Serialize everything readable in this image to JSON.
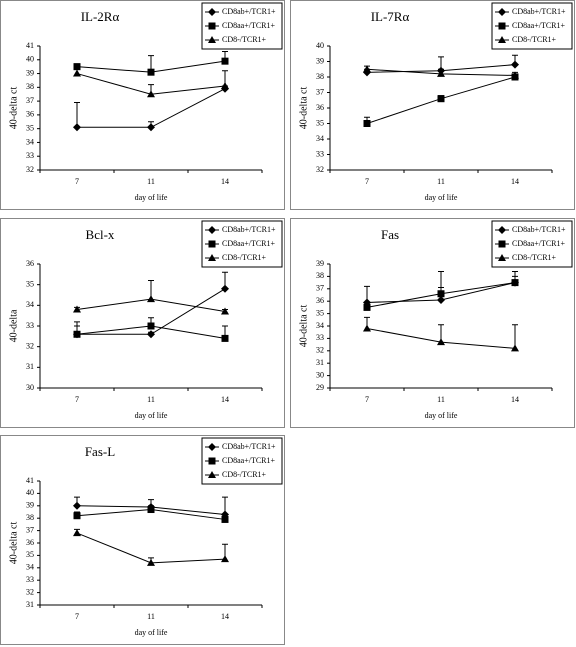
{
  "chart_data": [
    {
      "type": "line",
      "title": "IL-2Rα",
      "y_label": "40-delta ct",
      "x_label": "day of life",
      "categories": [
        "7",
        "11",
        "14"
      ],
      "ylim": [
        32,
        41
      ],
      "yticks": [
        32,
        33,
        34,
        35,
        36,
        37,
        38,
        39,
        40,
        41
      ],
      "legend": "top-right",
      "series": [
        {
          "name": "CD8ab+/TCR1+",
          "color": "#000000",
          "marker": "diamond",
          "values": [
            35.1,
            35.1,
            37.9
          ],
          "errors": [
            1.8,
            0.4,
            0.2
          ]
        },
        {
          "name": "CD8aa+/TCR1+",
          "color": "#000000",
          "marker": "square",
          "values": [
            39.5,
            39.1,
            39.9
          ],
          "errors": [
            0.2,
            1.2,
            0.7
          ]
        },
        {
          "name": "CD8-/TCR1+",
          "color": "#000000",
          "marker": "triangle",
          "values": [
            39.0,
            37.5,
            38.1
          ],
          "errors": [
            0.3,
            0.7,
            1.1
          ]
        }
      ]
    },
    {
      "type": "line",
      "title": "IL-7Rα",
      "y_label": "40-delta ct",
      "x_label": "day of life",
      "categories": [
        "7",
        "11",
        "14"
      ],
      "ylim": [
        32,
        40
      ],
      "yticks": [
        32,
        33,
        34,
        35,
        36,
        37,
        38,
        39,
        40
      ],
      "legend": "top-right",
      "series": [
        {
          "name": "CD8ab+/TCR1+",
          "color": "#000000",
          "marker": "diamond",
          "values": [
            38.3,
            38.4,
            38.8
          ],
          "errors": [
            0.2,
            0.9,
            0.6
          ]
        },
        {
          "name": "CD8aa+/TCR1+",
          "color": "#000000",
          "marker": "square",
          "values": [
            35.0,
            36.6,
            38.0
          ],
          "errors": [
            0.4,
            0.2,
            0.2
          ]
        },
        {
          "name": "CD8-/TCR1+",
          "color": "#000000",
          "marker": "triangle",
          "values": [
            38.5,
            38.2,
            38.1
          ],
          "errors": [
            0.2,
            0.3,
            0.2
          ]
        }
      ]
    },
    {
      "type": "line",
      "title": "Bcl-x",
      "y_label": "40-delta",
      "x_label": "day of life",
      "categories": [
        "7",
        "11",
        "14"
      ],
      "ylim": [
        30,
        36
      ],
      "yticks": [
        30,
        31,
        32,
        33,
        34,
        35,
        36
      ],
      "legend": "top-right",
      "series": [
        {
          "name": "CD8ab+/TCR1+",
          "color": "#000000",
          "marker": "diamond",
          "values": [
            32.6,
            32.6,
            34.8
          ],
          "errors": [
            0.6,
            0.1,
            0.8
          ]
        },
        {
          "name": "CD8aa+/TCR1+",
          "color": "#000000",
          "marker": "square",
          "values": [
            32.6,
            33.0,
            32.4
          ],
          "errors": [
            0.4,
            0.4,
            0.6
          ]
        },
        {
          "name": "CD8-/TCR1+",
          "color": "#000000",
          "marker": "triangle",
          "values": [
            33.8,
            34.3,
            33.7
          ],
          "errors": [
            0.1,
            0.9,
            0.1
          ]
        }
      ]
    },
    {
      "type": "line",
      "title": "Fas",
      "y_label": "40-delta ct",
      "x_label": "day of life",
      "categories": [
        "7",
        "11",
        "14"
      ],
      "ylim": [
        29,
        39
      ],
      "yticks": [
        29,
        30,
        31,
        32,
        33,
        34,
        35,
        36,
        37,
        38,
        39
      ],
      "legend": "top-right",
      "series": [
        {
          "name": "CD8ab+/TCR1+",
          "color": "#000000",
          "marker": "diamond",
          "values": [
            35.9,
            36.1,
            37.5
          ],
          "errors": [
            1.3,
            1.0,
            0.9
          ]
        },
        {
          "name": "CD8aa+/TCR1+",
          "color": "#000000",
          "marker": "square",
          "values": [
            35.5,
            36.6,
            37.5
          ],
          "errors": [
            0.4,
            1.8,
            0.5
          ]
        },
        {
          "name": "CD8-/TCR1+",
          "color": "#000000",
          "marker": "triangle",
          "values": [
            33.8,
            32.7,
            32.2
          ],
          "errors": [
            0.9,
            1.4,
            1.9
          ]
        }
      ]
    },
    {
      "type": "line",
      "title": "Fas-L",
      "y_label": "40-delta ct",
      "x_label": "day of life",
      "categories": [
        "7",
        "11",
        "14"
      ],
      "ylim": [
        31,
        41
      ],
      "yticks": [
        31,
        32,
        33,
        34,
        35,
        36,
        37,
        38,
        39,
        40,
        41
      ],
      "legend": "top-right",
      "series": [
        {
          "name": "CD8ab+/TCR1+",
          "color": "#000000",
          "marker": "diamond",
          "values": [
            39.0,
            38.9,
            38.3
          ],
          "errors": [
            0.7,
            0.6,
            1.4
          ]
        },
        {
          "name": "CD8aa+/TCR1+",
          "color": "#000000",
          "marker": "square",
          "values": [
            38.2,
            38.7,
            37.9
          ],
          "errors": [
            0.3,
            0.3,
            0.4
          ]
        },
        {
          "name": "CD8-/TCR1+",
          "color": "#000000",
          "marker": "triangle",
          "values": [
            36.8,
            34.4,
            34.7
          ],
          "errors": [
            0.3,
            0.4,
            1.2
          ]
        }
      ]
    }
  ]
}
